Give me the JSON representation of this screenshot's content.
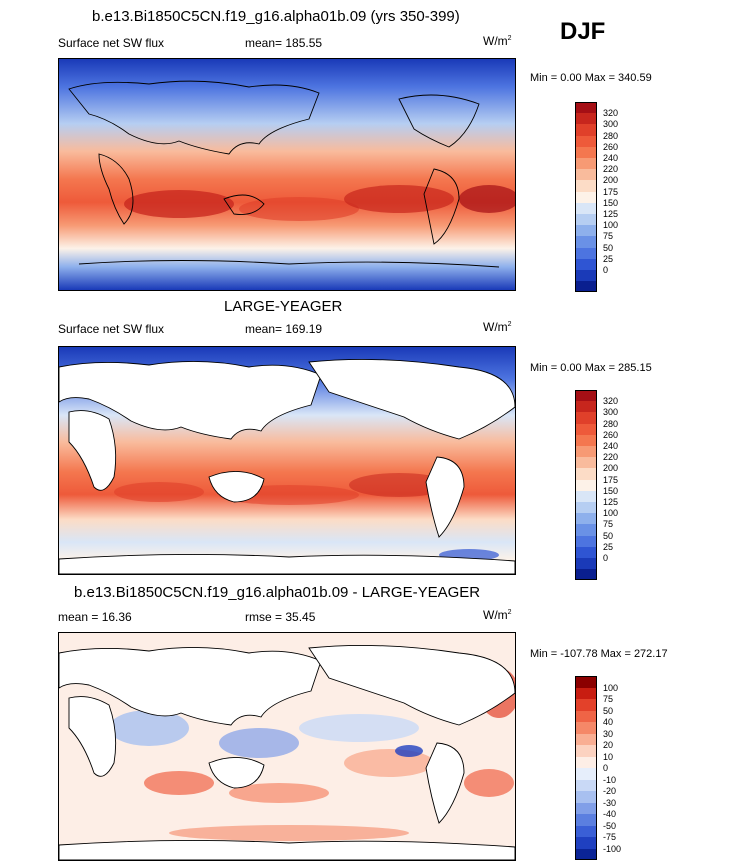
{
  "season": "DJF",
  "panels": [
    {
      "title": "b.e13.Bi1850C5CN.f19_g16.alpha01b.09 (yrs 350-399)",
      "left_label": "Surface net SW flux",
      "center_label": "mean= 185.55",
      "units": "W/m",
      "units_sup": "2",
      "minmax": "Min =    0.00 Max = 340.59",
      "colorbar": {
        "colors": [
          "#a50f15",
          "#c7261d",
          "#e0402a",
          "#ee5a3a",
          "#f4774f",
          "#f79a74",
          "#f9bb9c",
          "#fcdcc6",
          "#fdf2e8",
          "#d9e6f7",
          "#b6cef2",
          "#8eb0ec",
          "#6a91e6",
          "#4d74e0",
          "#2f55d3",
          "#1a3ab8",
          "#0a1f8f"
        ],
        "labels": [
          "320",
          "300",
          "280",
          "260",
          "240",
          "220",
          "200",
          "175",
          "150",
          "125",
          "100",
          "75",
          "50",
          "25",
          "0"
        ]
      }
    },
    {
      "title": "LARGE-YEAGER",
      "left_label": "Surface net SW flux",
      "center_label": "mean= 169.19",
      "units": "W/m",
      "units_sup": "2",
      "minmax": "Min =    0.00 Max = 285.15",
      "colorbar": {
        "colors": [
          "#a50f15",
          "#c7261d",
          "#e0402a",
          "#ee5a3a",
          "#f4774f",
          "#f79a74",
          "#f9bb9c",
          "#fcdcc6",
          "#fdf2e8",
          "#d9e6f7",
          "#b6cef2",
          "#8eb0ec",
          "#6a91e6",
          "#4d74e0",
          "#2f55d3",
          "#1a3ab8",
          "#0a1f8f"
        ],
        "labels": [
          "320",
          "300",
          "280",
          "260",
          "240",
          "220",
          "200",
          "175",
          "150",
          "125",
          "100",
          "75",
          "50",
          "25",
          "0"
        ]
      }
    },
    {
      "title": "b.e13.Bi1850C5CN.f19_g16.alpha01b.09 - LARGE-YEAGER",
      "left_label": "mean =  16.36",
      "center_label": "rmse =  35.45",
      "units": "W/m",
      "units_sup": "2",
      "minmax": "Min = -107.78 Max = 272.17",
      "colorbar": {
        "colors": [
          "#8b0000",
          "#c81d11",
          "#e3412a",
          "#ef6446",
          "#f58868",
          "#f9ae93",
          "#fcd2c0",
          "#fdeee6",
          "#e6eefb",
          "#c9d9f6",
          "#a8c0f0",
          "#819fe8",
          "#5b7fe0",
          "#3a5fd6",
          "#1f40c0",
          "#0b2496"
        ],
        "labels": [
          "100",
          "75",
          "50",
          "40",
          "30",
          "20",
          "10",
          "0",
          "-10",
          "-20",
          "-30",
          "-40",
          "-50",
          "-75",
          "-100"
        ]
      }
    }
  ]
}
